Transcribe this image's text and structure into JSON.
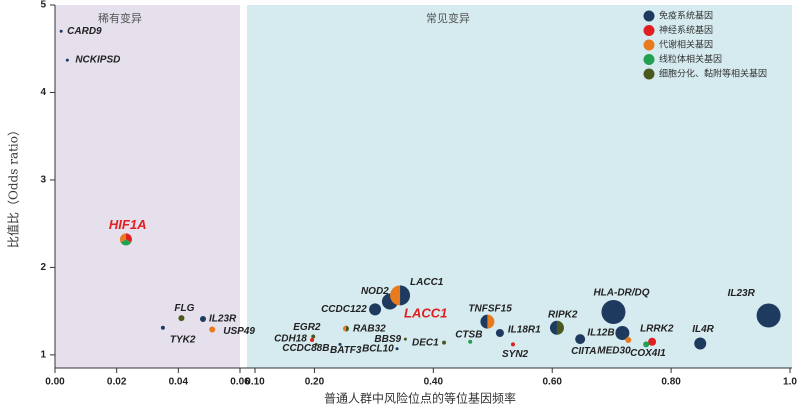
{
  "chart_data": [
    {
      "type": "bubble",
      "title": "稀有变异",
      "ylabel": "比值比（Odds ratio）",
      "xlim": [
        0,
        0.06
      ],
      "xticks": [
        {
          "value": 0,
          "label": "0.00"
        },
        {
          "value": 0.02,
          "label": "0.02"
        },
        {
          "value": 0.04,
          "label": "0.04"
        },
        {
          "value": 0.06,
          "label": "0.06"
        }
      ],
      "ylim": [
        0.85,
        5
      ],
      "yticks": [
        1,
        2,
        3,
        4,
        5
      ],
      "points": [
        {
          "name": "CARD9",
          "x": 0.002,
          "y": 4.7,
          "size": 1,
          "colors": [
            "#1f3a5f"
          ]
        },
        {
          "name": "NCKIPSD",
          "x": 0.004,
          "y": 4.37,
          "size": 1,
          "colors": [
            "#1f3a5f"
          ]
        },
        {
          "name": "HIF1A",
          "x": 0.023,
          "y": 2.32,
          "size": 6,
          "colors": [
            "#e02020",
            "#22a050",
            "#e87a20"
          ],
          "highlight": true
        },
        {
          "name": "FLG",
          "x": 0.041,
          "y": 1.42,
          "size": 3,
          "colors": [
            "#4a5a1e"
          ]
        },
        {
          "name": "IL23R",
          "x": 0.048,
          "y": 1.41,
          "size": 3,
          "colors": [
            "#1f3a5f"
          ]
        },
        {
          "name": "TYK2",
          "x": 0.035,
          "y": 1.31,
          "size": 2,
          "colors": [
            "#1f3a5f"
          ]
        },
        {
          "name": "USP49",
          "x": 0.051,
          "y": 1.29,
          "size": 3,
          "colors": [
            "#e87a20"
          ]
        }
      ]
    },
    {
      "type": "bubble",
      "title": "常见变异",
      "xlabel": "普通人群中风险位点的等位基因频率",
      "xlim": [
        0.1,
        1.0
      ],
      "xticks": [
        {
          "value": 0.1,
          "label": "0.10"
        },
        {
          "value": 0.2,
          "label": "0.20"
        },
        {
          "value": 0.4,
          "label": "0.40"
        },
        {
          "value": 0.6,
          "label": "0.60"
        },
        {
          "value": 0.8,
          "label": "0.80"
        },
        {
          "value": 1.0,
          "label": "1.0"
        }
      ],
      "ylim": [
        0.85,
        5
      ],
      "annotation": "LACC1",
      "legend": [
        {
          "name": "免疫系统基因",
          "color": "#1f3a5f"
        },
        {
          "name": "神经系统基因",
          "color": "#e02020"
        },
        {
          "name": "代谢相关基因",
          "color": "#e87a20"
        },
        {
          "name": "线粒体相关基因",
          "color": "#22a050"
        },
        {
          "name": "细胞分化、黏附等相关基因",
          "color": "#4a5a1e"
        }
      ],
      "points": [
        {
          "name": "NOD2",
          "x": 0.327,
          "y": 1.61,
          "size": 8,
          "colors": [
            "#1f3a5f"
          ]
        },
        {
          "name": "LACC1",
          "x": 0.344,
          "y": 1.68,
          "size": 10,
          "colors": [
            "#1f3a5f",
            "#e87a20"
          ]
        },
        {
          "name": "CCDC122",
          "x": 0.302,
          "y": 1.52,
          "size": 6,
          "colors": [
            "#1f3a5f"
          ]
        },
        {
          "name": "EGR2",
          "x": 0.198,
          "y": 1.21,
          "size": 2,
          "colors": [
            "#4a5a1e"
          ]
        },
        {
          "name": "RAB32",
          "x": 0.253,
          "y": 1.3,
          "size": 3,
          "colors": [
            "#4a5a1e",
            "#e87a20"
          ]
        },
        {
          "name": "CDH18",
          "x": 0.196,
          "y": 1.17,
          "size": 2,
          "colors": [
            "#e02020"
          ]
        },
        {
          "name": "BATF3",
          "x": 0.243,
          "y": 1.12,
          "size": 1,
          "colors": [
            "#1f3a5f"
          ]
        },
        {
          "name": "CCDC88B",
          "x": 0.203,
          "y": 1.12,
          "size": 1,
          "colors": [
            "#4a5a1e"
          ]
        },
        {
          "name": "BBS9",
          "x": 0.353,
          "y": 1.18,
          "size": 1,
          "colors": [
            "#4a5a1e"
          ]
        },
        {
          "name": "BCL10",
          "x": 0.339,
          "y": 1.07,
          "size": 1,
          "colors": [
            "#1f3a5f"
          ]
        },
        {
          "name": "DEC1",
          "x": 0.418,
          "y": 1.14,
          "size": 2,
          "colors": [
            "#4a5a1e"
          ]
        },
        {
          "name": "CTSB",
          "x": 0.462,
          "y": 1.15,
          "size": 2,
          "colors": [
            "#22a050"
          ]
        },
        {
          "name": "TNFSF15",
          "x": 0.491,
          "y": 1.38,
          "size": 7,
          "colors": [
            "#e87a20",
            "#1f3a5f"
          ]
        },
        {
          "name": "IL18R1",
          "x": 0.512,
          "y": 1.25,
          "size": 4,
          "colors": [
            "#1f3a5f"
          ]
        },
        {
          "name": "SYN2",
          "x": 0.534,
          "y": 1.12,
          "size": 2,
          "colors": [
            "#e02020"
          ]
        },
        {
          "name": "RIPK2",
          "x": 0.608,
          "y": 1.31,
          "size": 7,
          "colors": [
            "#4a5a1e",
            "#1f3a5f"
          ]
        },
        {
          "name": "CIITA",
          "x": 0.647,
          "y": 1.18,
          "size": 5,
          "colors": [
            "#1f3a5f"
          ]
        },
        {
          "name": "IL12B",
          "x": 0.718,
          "y": 1.25,
          "size": 7,
          "colors": [
            "#1f3a5f"
          ]
        },
        {
          "name": "HLA-DR/DQ",
          "x": 0.703,
          "y": 1.49,
          "size": 12,
          "colors": [
            "#1f3a5f"
          ]
        },
        {
          "name": "MED30",
          "x": 0.728,
          "y": 1.17,
          "size": 3,
          "colors": [
            "#e87a20"
          ]
        },
        {
          "name": "LRRK2",
          "x": 0.768,
          "y": 1.15,
          "size": 4,
          "colors": [
            "#e02020"
          ]
        },
        {
          "name": "COX4I1",
          "x": 0.758,
          "y": 1.12,
          "size": 3,
          "colors": [
            "#22a050"
          ]
        },
        {
          "name": "IL4R",
          "x": 0.849,
          "y": 1.13,
          "size": 6,
          "colors": [
            "#1f3a5f"
          ]
        },
        {
          "name": "IL23R",
          "x": 0.964,
          "y": 1.45,
          "size": 12,
          "colors": [
            "#1f3a5f"
          ]
        }
      ]
    }
  ]
}
